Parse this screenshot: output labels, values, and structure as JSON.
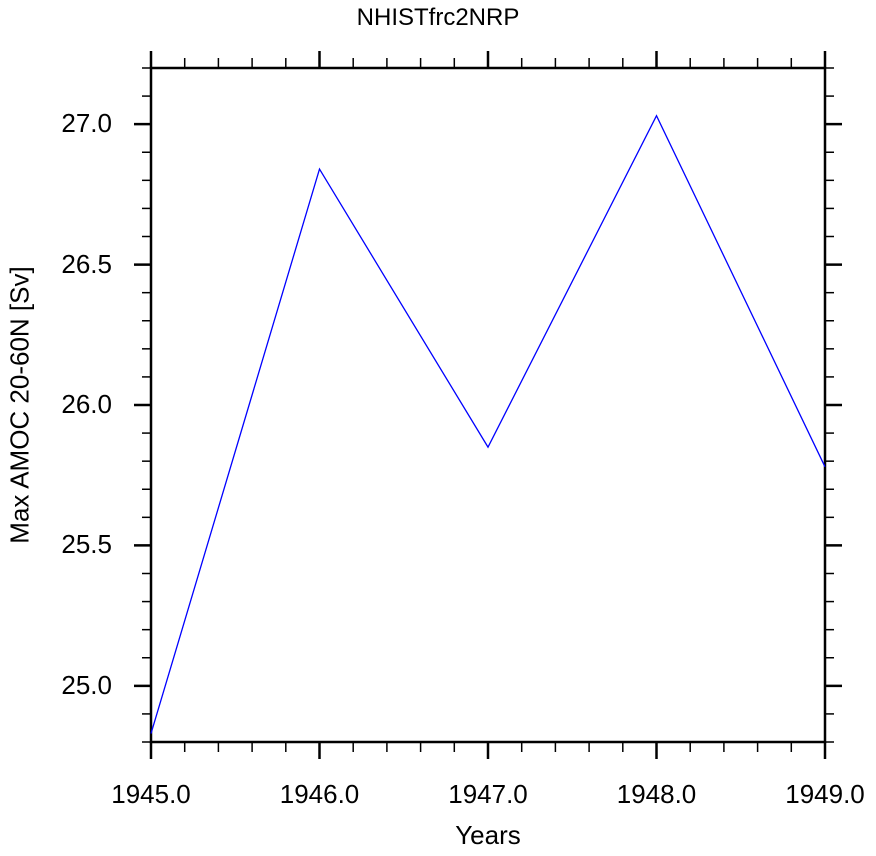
{
  "chart_data": {
    "type": "line",
    "title": "NHISTfrc2NRP",
    "xlabel": "Years",
    "ylabel": "Max AMOC 20-60N [Sv]",
    "x": [
      1945.0,
      1946.0,
      1947.0,
      1948.0,
      1949.0
    ],
    "series": [
      {
        "name": "NHISTfrc2NRP",
        "color": "#0000ff",
        "values": [
          24.83,
          26.84,
          25.85,
          27.03,
          25.78
        ]
      }
    ],
    "xlim": [
      1945.0,
      1949.0
    ],
    "ylim": [
      24.8,
      27.2
    ],
    "xticks": [
      "1945.0",
      "1946.0",
      "1947.0",
      "1948.0",
      "1949.0"
    ],
    "yticks": [
      "25.0",
      "25.5",
      "26.0",
      "26.5",
      "27.0"
    ],
    "grid": false,
    "legend": null
  }
}
